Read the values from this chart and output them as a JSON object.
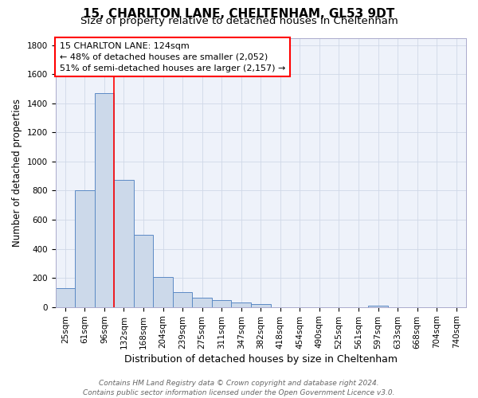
{
  "title1": "15, CHARLTON LANE, CHELTENHAM, GL53 9DT",
  "title2": "Size of property relative to detached houses in Cheltenham",
  "xlabel": "Distribution of detached houses by size in Cheltenham",
  "ylabel": "Number of detached properties",
  "categories": [
    "25sqm",
    "61sqm",
    "96sqm",
    "132sqm",
    "168sqm",
    "204sqm",
    "239sqm",
    "275sqm",
    "311sqm",
    "347sqm",
    "382sqm",
    "418sqm",
    "454sqm",
    "490sqm",
    "525sqm",
    "561sqm",
    "597sqm",
    "633sqm",
    "668sqm",
    "704sqm",
    "740sqm"
  ],
  "values": [
    130,
    800,
    1470,
    875,
    495,
    205,
    105,
    65,
    48,
    32,
    20,
    0,
    0,
    0,
    0,
    0,
    12,
    0,
    0,
    0,
    0
  ],
  "bar_color": "#ccd9ea",
  "bar_edge_color": "#5b8ac5",
  "grid_color": "#d0d8e8",
  "background_color": "#eef2fa",
  "vline_x": 2.5,
  "vline_color": "red",
  "annotation_box_text": "15 CHARLTON LANE: 124sqm\n← 48% of detached houses are smaller (2,052)\n51% of semi-detached houses are larger (2,157) →",
  "footer1": "Contains HM Land Registry data © Crown copyright and database right 2024.",
  "footer2": "Contains public sector information licensed under the Open Government Licence v3.0.",
  "ylim": [
    0,
    1850
  ],
  "yticks": [
    0,
    200,
    400,
    600,
    800,
    1000,
    1200,
    1400,
    1600,
    1800
  ],
  "title1_fontsize": 11,
  "title2_fontsize": 9.5,
  "xlabel_fontsize": 9,
  "ylabel_fontsize": 8.5,
  "tick_fontsize": 7.5,
  "annotation_fontsize": 8,
  "footer_fontsize": 6.5
}
